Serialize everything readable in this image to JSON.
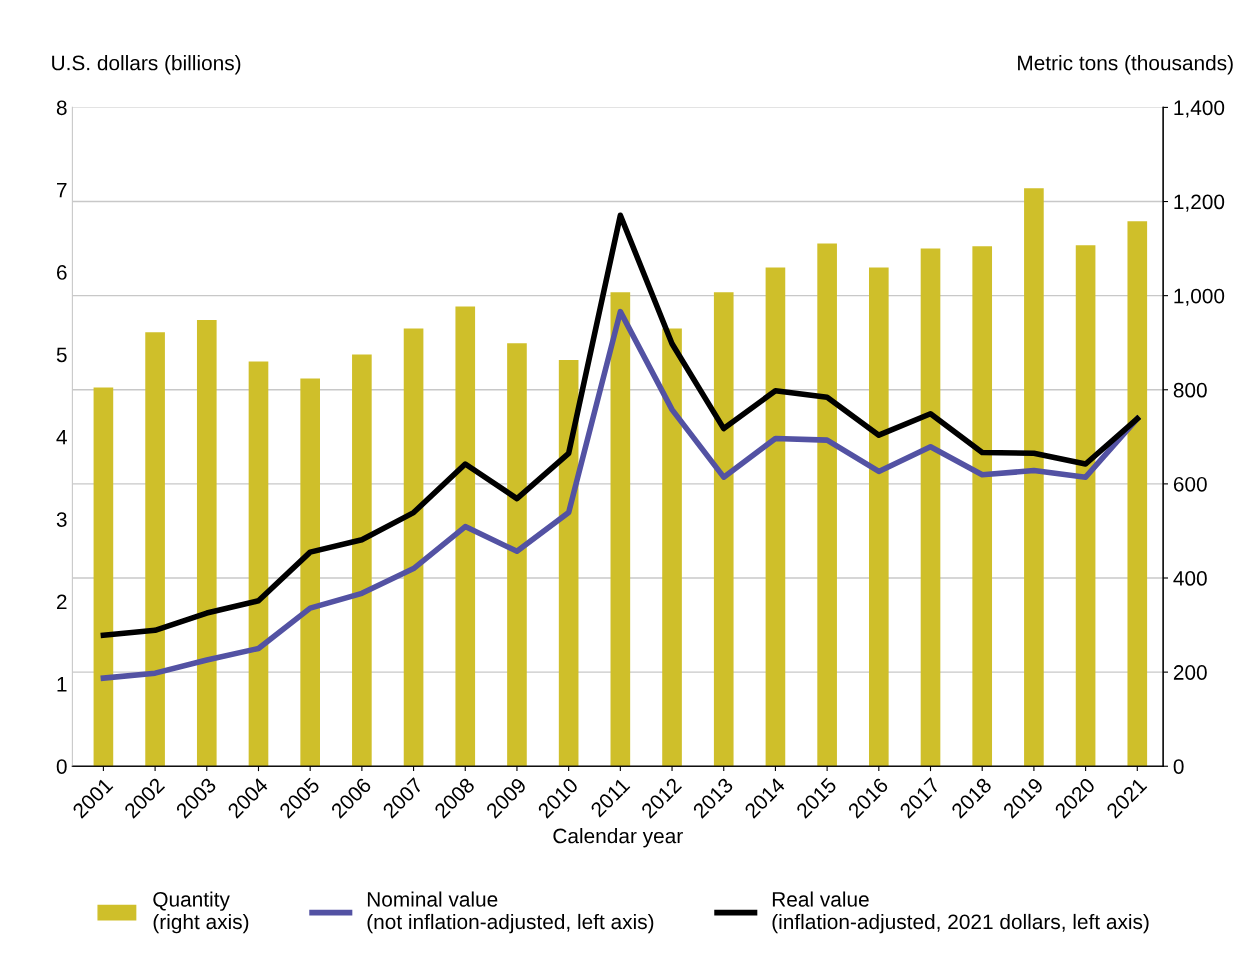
{
  "chart_data": {
    "type": "bar",
    "xlabel": "Calendar year",
    "ylabel": "U.S. dollars (billions)",
    "y2label": "Metric tons (thousands)",
    "categories": [
      "2001",
      "2002",
      "2003",
      "2004",
      "2005",
      "2006",
      "2007",
      "2008",
      "2009",
      "2010",
      "2011",
      "2012",
      "2013",
      "2014",
      "2015",
      "2016",
      "2017",
      "2018",
      "2019",
      "2020",
      "2021"
    ],
    "series": [
      {
        "name": "Quantity\n(right axis)",
        "axis": "y2",
        "color": "#cfbf2a",
        "values": [
          805,
          922,
          948,
          860,
          824,
          875,
          930,
          977,
          899,
          863,
          1007,
          930,
          1007,
          1060,
          1111,
          1060,
          1100,
          1105,
          1228,
          1107,
          1158
        ]
      },
      {
        "name": "Nominal value\n(not inflation-adjusted, left axis)",
        "type": "line",
        "color": "#5352a3",
        "values": [
          1.07,
          1.13,
          1.29,
          1.43,
          1.92,
          2.1,
          2.4,
          2.91,
          2.61,
          3.08,
          5.52,
          4.33,
          3.51,
          3.98,
          3.96,
          3.58,
          3.88,
          3.54,
          3.59,
          3.51,
          4.22
        ]
      },
      {
        "name": "Real value\n(inflation-adjusted, 2021 dollars, left axis)",
        "type": "line",
        "color": "#000000",
        "values": [
          1.59,
          1.65,
          1.86,
          2.01,
          2.6,
          2.75,
          3.08,
          3.67,
          3.25,
          3.8,
          6.69,
          5.13,
          4.1,
          4.56,
          4.48,
          4.02,
          4.28,
          3.81,
          3.8,
          3.67,
          4.22
        ]
      }
    ],
    "ylim": [
      0,
      8
    ],
    "yticks": [
      0,
      1,
      2,
      3,
      4,
      5,
      6,
      7,
      8
    ],
    "y2lim": [
      0,
      1400
    ],
    "y2ticks": [
      {
        "value": 0,
        "label": "0"
      },
      {
        "value": 200,
        "label": "200"
      },
      {
        "value": 400,
        "label": "400"
      },
      {
        "value": 600,
        "label": "600"
      },
      {
        "value": 800,
        "label": "800"
      },
      {
        "value": 1000,
        "label": "1,000"
      },
      {
        "value": 1200,
        "label": "1,200"
      },
      {
        "value": 1400,
        "label": "1,400"
      }
    ],
    "grid": "y",
    "legend": "bottom"
  }
}
